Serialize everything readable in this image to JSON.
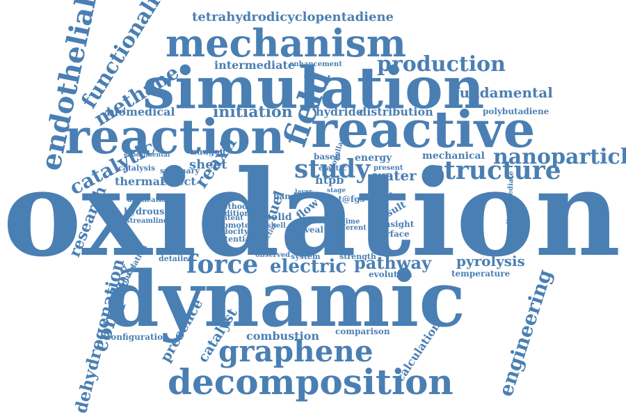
{
  "color": "#4a7fb3",
  "words": [
    "tetrahydrodicyclopentadiene",
    "mechanism",
    "functionalized",
    "endothelial",
    "methane",
    "production",
    "intermediate",
    "enhancement",
    "simulation",
    "fundamental",
    "biomedical",
    "initiation",
    "hydride",
    "distribution",
    "polybutadiene",
    "reaction",
    "reactive",
    "field",
    "nanoparticle",
    "catalytic",
    "study",
    "structure",
    "thermal",
    "effect",
    "reaxff",
    "sheet",
    "nudged",
    "mechanical",
    "energy",
    "water",
    "htpb",
    "elastic",
    "band",
    "based",
    "oxidation",
    "research",
    "complex",
    "force",
    "electric",
    "pathway",
    "pyrolysis",
    "temperature",
    "dynamic",
    "dehydrogenation",
    "presence",
    "catalyst",
    "configuration",
    "combustion",
    "comparison",
    "graphene",
    "calculation",
    "decomposition",
    "engineering",
    "evolution",
    "strength",
    "system",
    "hydrous",
    "streamline",
    "catalysis",
    "scale",
    "result",
    "insight",
    "surface",
    "fuel",
    "flow",
    "solid",
    "shell",
    "reveal",
    "different",
    "potential",
    "velocity",
    "promote",
    "content",
    "method",
    "addition",
    "application",
    "summary",
    "detailed",
    "observed",
    "present",
    "regime",
    "pt@fgs",
    "clintermediate",
    "ethanoloxidation",
    "stage",
    "effective",
    "propellant",
    "experimental",
    "layer"
  ]
}
